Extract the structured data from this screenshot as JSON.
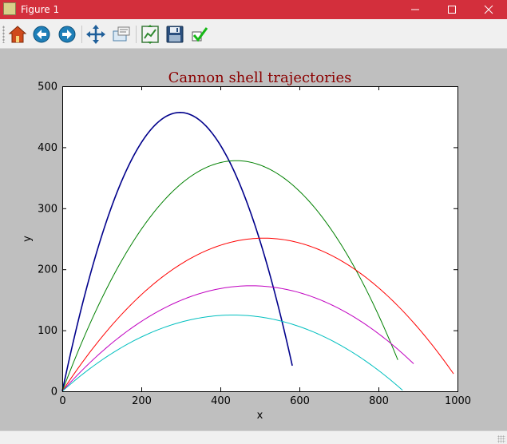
{
  "window": {
    "title": "Figure 1",
    "title_bar_color": "#d32f3c"
  },
  "window_controls": [
    {
      "name": "minimize-button",
      "icon": "minimize-icon"
    },
    {
      "name": "maximize-button",
      "icon": "maximize-icon"
    },
    {
      "name": "close-button",
      "icon": "close-icon"
    }
  ],
  "toolbar": {
    "buttons": [
      {
        "name": "home-button",
        "icon": "home-icon"
      },
      {
        "name": "back-button",
        "icon": "back-arrow-icon"
      },
      {
        "name": "forward-button",
        "icon": "forward-arrow-icon"
      },
      {
        "name": "pan-button",
        "icon": "pan-arrows-icon"
      },
      {
        "name": "zoom-button",
        "icon": "zoom-rectangle-icon"
      },
      {
        "name": "subplots-button",
        "icon": "subplots-icon"
      },
      {
        "name": "save-button",
        "icon": "floppy-disk-icon"
      },
      {
        "name": "edit-parameters-button",
        "icon": "checkmark-icon"
      }
    ]
  },
  "chart_data": {
    "type": "line",
    "title": "Cannon shell trajectories",
    "xlabel": "x",
    "ylabel": "y",
    "xlim": [
      0,
      1000
    ],
    "ylim": [
      0,
      500
    ],
    "xticks": [
      0,
      200,
      400,
      600,
      800,
      1000
    ],
    "yticks": [
      0,
      100,
      200,
      300,
      400,
      500
    ],
    "grid": false,
    "title_color": "#8b0000",
    "series": [
      {
        "color": "#00008b",
        "apex_x": 298,
        "apex_y": 457,
        "end_x": 582,
        "end_y": 43
      },
      {
        "color": "#008000",
        "apex_x": 440,
        "apex_y": 378,
        "end_x": 849,
        "end_y": 50
      },
      {
        "color": "#ff0000",
        "apex_x": 510,
        "apex_y": 251,
        "end_x": 990,
        "end_y": 22
      },
      {
        "color": "#c000c0",
        "apex_x": 478,
        "apex_y": 173,
        "end_x": 889,
        "end_y": 47
      },
      {
        "color": "#00bfbf",
        "apex_x": 432,
        "apex_y": 125,
        "end_x": 861,
        "end_y": 4
      }
    ]
  }
}
